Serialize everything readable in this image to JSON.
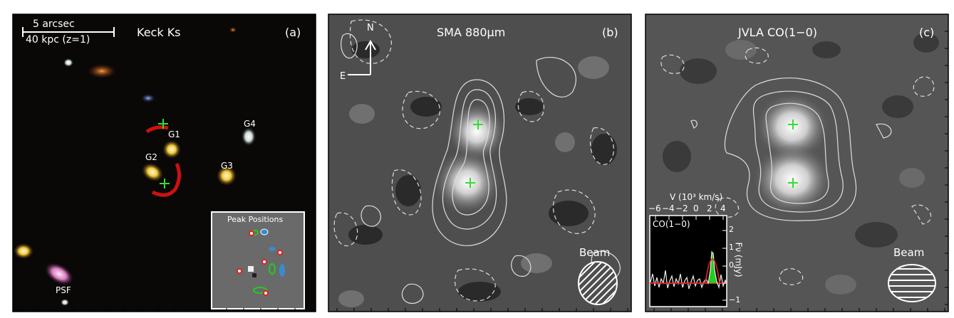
{
  "panel_a": {
    "title": "Keck Ks",
    "tag": "(a)",
    "scalebar_top": "5 arcsec",
    "scalebar_bottom": "40 kpc (z=1)",
    "labels": [
      "G1",
      "G2",
      "G3",
      "G4",
      "PSF"
    ],
    "inset_title": "Peak Positions"
  },
  "panel_b": {
    "title": "SMA 880μm",
    "tag": "(b)",
    "compass_n": "N",
    "compass_e": "E",
    "beam_label": "Beam"
  },
  "panel_c": {
    "title": "JVLA CO(1−0)",
    "tag": "(c)",
    "beam_label": "Beam",
    "spectrum": {
      "line_label": "CO(1−0)",
      "top_axis_label": "V (10³ km/s)",
      "top_ticks": [
        "−6",
        "−4",
        "−2",
        "0",
        "2",
        "4"
      ],
      "right_axis_label": "Fν (mJy)",
      "right_ticks": [
        "2",
        "1",
        "0",
        "−1"
      ]
    }
  },
  "colors": {
    "marker_green": "#33dd33",
    "contour": "#dddddd",
    "lens_arc": "#cc1111"
  }
}
